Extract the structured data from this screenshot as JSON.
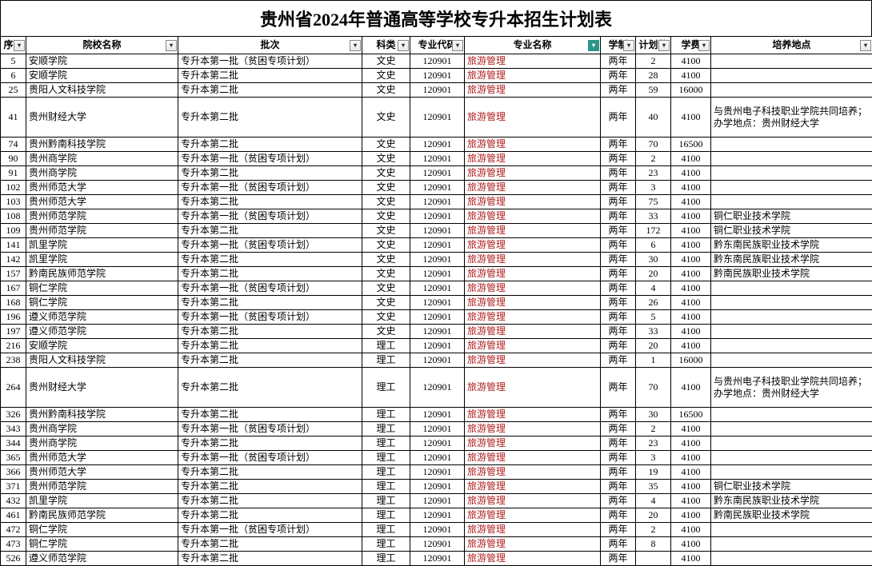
{
  "title": "贵州省2024年普通高等学校专升本招生计划表",
  "columns": [
    {
      "key": "seq",
      "label": "序号",
      "cls": "col-seq",
      "drop": true
    },
    {
      "key": "school",
      "label": "院校名称",
      "cls": "col-school",
      "drop": true
    },
    {
      "key": "batch",
      "label": "批次",
      "cls": "col-batch",
      "drop": true
    },
    {
      "key": "subject",
      "label": "科类",
      "cls": "col-subj",
      "drop": true
    },
    {
      "key": "code",
      "label": "专业代码",
      "cls": "col-code",
      "drop": true
    },
    {
      "key": "major",
      "label": "专业名称",
      "cls": "col-major",
      "drop": true,
      "teal": true
    },
    {
      "key": "years",
      "label": "学制",
      "cls": "col-year",
      "drop": true
    },
    {
      "key": "plan",
      "label": "计划数",
      "cls": "col-plan",
      "drop": true
    },
    {
      "key": "fee",
      "label": "学费",
      "cls": "col-fee",
      "drop": true
    },
    {
      "key": "loc",
      "label": "培养地点",
      "cls": "col-loc",
      "drop": true
    }
  ],
  "major_text": "旅游管理",
  "code_text": "120901",
  "years_text": "两年",
  "rows": [
    {
      "seq": "5",
      "school": "安顺学院",
      "batch": "专升本第一批（贫困专项计划）",
      "subject": "文史",
      "plan": "2",
      "fee": "4100",
      "loc": ""
    },
    {
      "seq": "6",
      "school": "安顺学院",
      "batch": "专升本第二批",
      "subject": "文史",
      "plan": "28",
      "fee": "4100",
      "loc": ""
    },
    {
      "seq": "25",
      "school": "贵阳人文科技学院",
      "batch": "专升本第二批",
      "subject": "文史",
      "plan": "59",
      "fee": "16000",
      "loc": ""
    },
    {
      "seq": "41",
      "school": "贵州财经大学",
      "batch": "专升本第二批",
      "subject": "文史",
      "plan": "40",
      "fee": "4100",
      "loc": "与贵州电子科技职业学院共同培养；办学地点：贵州财经大学",
      "wrap": true
    },
    {
      "seq": "74",
      "school": "贵州黔南科技学院",
      "batch": "专升本第二批",
      "subject": "文史",
      "plan": "70",
      "fee": "16500",
      "loc": ""
    },
    {
      "seq": "90",
      "school": "贵州商学院",
      "batch": "专升本第一批（贫困专项计划）",
      "subject": "文史",
      "plan": "2",
      "fee": "4100",
      "loc": ""
    },
    {
      "seq": "91",
      "school": "贵州商学院",
      "batch": "专升本第二批",
      "subject": "文史",
      "plan": "23",
      "fee": "4100",
      "loc": ""
    },
    {
      "seq": "102",
      "school": "贵州师范大学",
      "batch": "专升本第一批（贫困专项计划）",
      "subject": "文史",
      "plan": "3",
      "fee": "4100",
      "loc": ""
    },
    {
      "seq": "103",
      "school": "贵州师范大学",
      "batch": "专升本第二批",
      "subject": "文史",
      "plan": "75",
      "fee": "4100",
      "loc": ""
    },
    {
      "seq": "108",
      "school": "贵州师范学院",
      "batch": "专升本第一批（贫困专项计划）",
      "subject": "文史",
      "plan": "33",
      "fee": "4100",
      "loc": "铜仁职业技术学院"
    },
    {
      "seq": "109",
      "school": "贵州师范学院",
      "batch": "专升本第二批",
      "subject": "文史",
      "plan": "172",
      "fee": "4100",
      "loc": "铜仁职业技术学院"
    },
    {
      "seq": "141",
      "school": "凯里学院",
      "batch": "专升本第一批（贫困专项计划）",
      "subject": "文史",
      "plan": "6",
      "fee": "4100",
      "loc": "黔东南民族职业技术学院"
    },
    {
      "seq": "142",
      "school": "凯里学院",
      "batch": "专升本第二批",
      "subject": "文史",
      "plan": "30",
      "fee": "4100",
      "loc": "黔东南民族职业技术学院"
    },
    {
      "seq": "157",
      "school": "黔南民族师范学院",
      "batch": "专升本第二批",
      "subject": "文史",
      "plan": "20",
      "fee": "4100",
      "loc": "黔南民族职业技术学院"
    },
    {
      "seq": "167",
      "school": "铜仁学院",
      "batch": "专升本第一批（贫困专项计划）",
      "subject": "文史",
      "plan": "4",
      "fee": "4100",
      "loc": ""
    },
    {
      "seq": "168",
      "school": "铜仁学院",
      "batch": "专升本第二批",
      "subject": "文史",
      "plan": "26",
      "fee": "4100",
      "loc": ""
    },
    {
      "seq": "196",
      "school": "遵义师范学院",
      "batch": "专升本第一批（贫困专项计划）",
      "subject": "文史",
      "plan": "5",
      "fee": "4100",
      "loc": ""
    },
    {
      "seq": "197",
      "school": "遵义师范学院",
      "batch": "专升本第二批",
      "subject": "文史",
      "plan": "33",
      "fee": "4100",
      "loc": ""
    },
    {
      "seq": "216",
      "school": "安顺学院",
      "batch": "专升本第二批",
      "subject": "理工",
      "plan": "20",
      "fee": "4100",
      "loc": ""
    },
    {
      "seq": "238",
      "school": "贵阳人文科技学院",
      "batch": "专升本第二批",
      "subject": "理工",
      "plan": "1",
      "fee": "16000",
      "loc": ""
    },
    {
      "seq": "264",
      "school": "贵州财经大学",
      "batch": "专升本第二批",
      "subject": "理工",
      "plan": "70",
      "fee": "4100",
      "loc": "与贵州电子科技职业学院共同培养；办学地点：贵州财经大学",
      "wrap": true
    },
    {
      "seq": "326",
      "school": "贵州黔南科技学院",
      "batch": "专升本第二批",
      "subject": "理工",
      "plan": "30",
      "fee": "16500",
      "loc": ""
    },
    {
      "seq": "343",
      "school": "贵州商学院",
      "batch": "专升本第一批（贫困专项计划）",
      "subject": "理工",
      "plan": "2",
      "fee": "4100",
      "loc": ""
    },
    {
      "seq": "344",
      "school": "贵州商学院",
      "batch": "专升本第二批",
      "subject": "理工",
      "plan": "23",
      "fee": "4100",
      "loc": ""
    },
    {
      "seq": "365",
      "school": "贵州师范大学",
      "batch": "专升本第一批（贫困专项计划）",
      "subject": "理工",
      "plan": "3",
      "fee": "4100",
      "loc": ""
    },
    {
      "seq": "366",
      "school": "贵州师范大学",
      "batch": "专升本第二批",
      "subject": "理工",
      "plan": "19",
      "fee": "4100",
      "loc": ""
    },
    {
      "seq": "371",
      "school": "贵州师范学院",
      "batch": "专升本第二批",
      "subject": "理工",
      "plan": "35",
      "fee": "4100",
      "loc": "铜仁职业技术学院"
    },
    {
      "seq": "432",
      "school": "凯里学院",
      "batch": "专升本第二批",
      "subject": "理工",
      "plan": "4",
      "fee": "4100",
      "loc": "黔东南民族职业技术学院"
    },
    {
      "seq": "461",
      "school": "黔南民族师范学院",
      "batch": "专升本第二批",
      "subject": "理工",
      "plan": "20",
      "fee": "4100",
      "loc": "黔南民族职业技术学院"
    },
    {
      "seq": "472",
      "school": "铜仁学院",
      "batch": "专升本第一批（贫困专项计划）",
      "subject": "理工",
      "plan": "2",
      "fee": "4100",
      "loc": ""
    },
    {
      "seq": "473",
      "school": "铜仁学院",
      "batch": "专升本第二批",
      "subject": "理工",
      "plan": "8",
      "fee": "4100",
      "loc": ""
    },
    {
      "seq": "526",
      "school": "遵义师范学院",
      "batch": "专升本第二批",
      "subject": "理工",
      "plan": "",
      "fee": "4100",
      "loc": ""
    }
  ]
}
